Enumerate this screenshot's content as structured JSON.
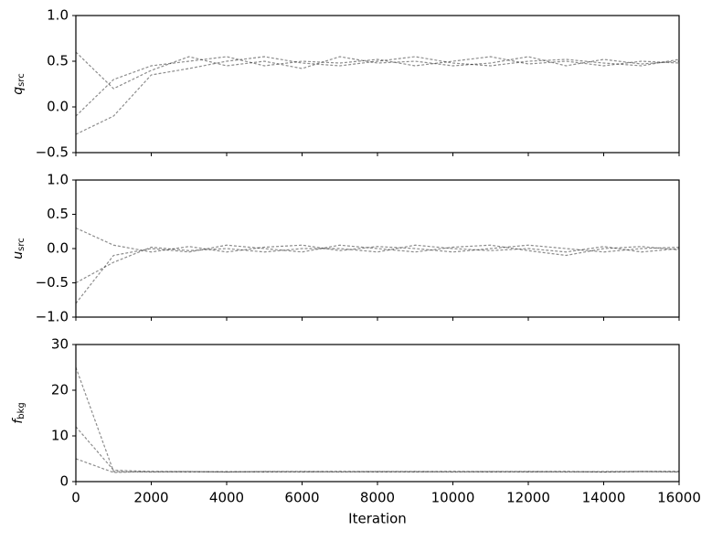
{
  "chart_data": [
    {
      "type": "line",
      "ylabel": "q",
      "ylabel_sub": "src",
      "x": [
        0,
        1000,
        2000,
        3000,
        4000,
        5000,
        6000,
        7000,
        8000,
        9000,
        10000,
        11000,
        12000,
        13000,
        14000,
        15000,
        16000
      ],
      "xlim": [
        0,
        16000
      ],
      "ylim": [
        -0.5,
        1.0
      ],
      "yticks": [
        {
          "value": -0.5,
          "label": "−0.5"
        },
        {
          "value": 0,
          "label": "0.0"
        },
        {
          "value": 0.5,
          "label": "0.5"
        },
        {
          "value": 1.0,
          "label": "1.0"
        }
      ],
      "series": [
        {
          "color": "#000000",
          "values": [
            -0.1,
            0.3,
            0.45,
            0.5,
            0.55,
            0.45,
            0.5,
            0.48,
            0.52,
            0.45,
            0.5,
            0.55,
            0.47,
            0.5,
            0.45,
            0.5,
            0.48
          ]
        },
        {
          "color": "#000000",
          "values": [
            0.6,
            0.2,
            0.4,
            0.55,
            0.45,
            0.5,
            0.42,
            0.55,
            0.48,
            0.5,
            0.45,
            0.48,
            0.55,
            0.45,
            0.52,
            0.47,
            0.5
          ]
        },
        {
          "color": "#000000",
          "values": [
            -0.3,
            -0.1,
            0.35,
            0.42,
            0.5,
            0.55,
            0.48,
            0.45,
            0.5,
            0.55,
            0.48,
            0.45,
            0.5,
            0.52,
            0.48,
            0.45,
            0.52
          ]
        }
      ]
    },
    {
      "type": "line",
      "ylabel": "u",
      "ylabel_sub": "src",
      "x": [
        0,
        1000,
        2000,
        3000,
        4000,
        5000,
        6000,
        7000,
        8000,
        9000,
        10000,
        11000,
        12000,
        13000,
        14000,
        15000,
        16000
      ],
      "xlim": [
        0,
        16000
      ],
      "ylim": [
        -1.0,
        1.0
      ],
      "yticks": [
        {
          "value": -1.0,
          "label": "−1.0"
        },
        {
          "value": -0.5,
          "label": "−0.5"
        },
        {
          "value": 0,
          "label": "0.0"
        },
        {
          "value": 0.5,
          "label": "0.5"
        },
        {
          "value": 1.0,
          "label": "1.0"
        }
      ],
      "series": [
        {
          "color": "#000000",
          "values": [
            -0.8,
            -0.1,
            0.0,
            -0.05,
            0.05,
            0.0,
            -0.05,
            0.05,
            0.0,
            -0.05,
            0.02,
            0.05,
            -0.03,
            -0.1,
            0.0,
            0.03,
            -0.02
          ]
        },
        {
          "color": "#000000",
          "values": [
            0.3,
            0.05,
            -0.05,
            0.03,
            -0.05,
            0.02,
            0.05,
            -0.03,
            0.03,
            0.0,
            -0.05,
            0.0,
            0.05,
            0.0,
            -0.05,
            0.0,
            0.02
          ]
        },
        {
          "color": "#000000",
          "values": [
            -0.5,
            -0.2,
            0.02,
            -0.03,
            0.0,
            -0.05,
            0.0,
            0.0,
            -0.05,
            0.05,
            0.0,
            -0.03,
            0.0,
            -0.05,
            0.03,
            -0.05,
            0.0
          ]
        }
      ]
    },
    {
      "type": "line",
      "ylabel": "f",
      "ylabel_sub": "bkg",
      "xlabel": "Iteration",
      "x": [
        0,
        1000,
        2000,
        3000,
        4000,
        5000,
        6000,
        7000,
        8000,
        9000,
        10000,
        11000,
        12000,
        13000,
        14000,
        15000,
        16000
      ],
      "xlim": [
        0,
        16000
      ],
      "ylim": [
        0,
        30
      ],
      "xticks": [
        0,
        2000,
        4000,
        6000,
        8000,
        10000,
        12000,
        14000,
        16000
      ],
      "yticks": [
        0,
        10,
        20,
        30
      ],
      "series": [
        {
          "color": "#000000",
          "values": [
            25,
            2.2,
            2.1,
            2.2,
            2.1,
            2.2,
            2.2,
            2.1,
            2.2,
            2.2,
            2.1,
            2.2,
            2.2,
            2.1,
            2.2,
            2.2,
            2.1
          ]
        },
        {
          "color": "#000000",
          "values": [
            12,
            2.5,
            2.2,
            2.1,
            2.2,
            2.1,
            2.2,
            2.2,
            2.1,
            2.2,
            2.2,
            2.1,
            2.2,
            2.2,
            2.1,
            2.2,
            2.2
          ]
        },
        {
          "color": "#000000",
          "values": [
            5,
            2.0,
            2.2,
            2.2,
            2.1,
            2.2,
            2.1,
            2.2,
            2.2,
            2.1,
            2.2,
            2.2,
            2.1,
            2.2,
            2.1,
            2.2,
            2.2
          ]
        }
      ]
    }
  ]
}
